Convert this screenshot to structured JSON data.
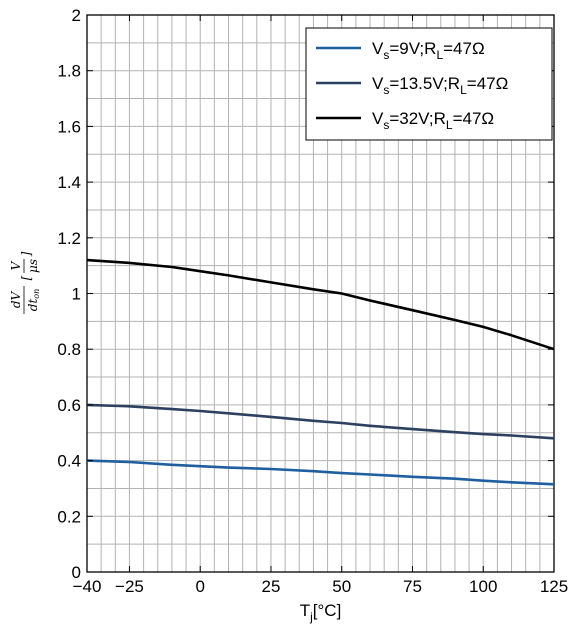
{
  "chart_data": {
    "type": "line",
    "xlabel": {
      "main": "T",
      "sub": "j",
      "rest": "[°C]"
    },
    "ylabel": {
      "num": "dV",
      "den": "dt",
      "den_sub": "on",
      "unit_pre": "[",
      "unit_num": "V",
      "unit_den": "μs",
      "unit_post": "]"
    },
    "xlim": [
      -40,
      125
    ],
    "ylim": [
      0,
      2
    ],
    "xticks": [
      -40,
      -25,
      0,
      25,
      50,
      75,
      100,
      125
    ],
    "xtick_labels": [
      "−40",
      "−25",
      "0",
      "25",
      "50",
      "75",
      "100",
      "125"
    ],
    "yticks": [
      0,
      0.2,
      0.4,
      0.6,
      0.8,
      1,
      1.2,
      1.4,
      1.6,
      1.8,
      2
    ],
    "ytick_labels": [
      "0",
      "0.2",
      "0.4",
      "0.6",
      "0.8",
      "1",
      "1.2",
      "1.4",
      "1.6",
      "1.8",
      "2"
    ],
    "grid": true,
    "legend_position": "top-right",
    "series": [
      {
        "name": "V_s=9V;R_L=47Ω",
        "label_parts": [
          "V",
          "s",
          "=9V;R",
          "L",
          "=47Ω"
        ],
        "color": "#1f5fa0",
        "x": [
          -40,
          -25,
          -10,
          0,
          10,
          25,
          40,
          50,
          60,
          75,
          90,
          100,
          110,
          125
        ],
        "y": [
          0.4,
          0.395,
          0.385,
          0.38,
          0.375,
          0.37,
          0.362,
          0.355,
          0.35,
          0.342,
          0.335,
          0.328,
          0.322,
          0.315
        ]
      },
      {
        "name": "V_s=13.5V;R_L=47Ω",
        "label_parts": [
          "V",
          "s",
          "=13.5V;R",
          "L",
          "=47Ω"
        ],
        "color": "#2c4060",
        "x": [
          -40,
          -25,
          -10,
          0,
          10,
          25,
          40,
          50,
          60,
          75,
          90,
          100,
          110,
          125
        ],
        "y": [
          0.6,
          0.595,
          0.585,
          0.578,
          0.57,
          0.557,
          0.543,
          0.535,
          0.525,
          0.513,
          0.502,
          0.495,
          0.49,
          0.48
        ]
      },
      {
        "name": "V_s=32V;R_L=47Ω",
        "label_parts": [
          "V",
          "s",
          "=32V;R",
          "L",
          "=47Ω"
        ],
        "color": "#000000",
        "x": [
          -40,
          -25,
          -10,
          0,
          10,
          25,
          40,
          50,
          60,
          75,
          90,
          100,
          110,
          125
        ],
        "y": [
          1.12,
          1.11,
          1.095,
          1.08,
          1.065,
          1.04,
          1.015,
          1.0,
          0.975,
          0.94,
          0.905,
          0.88,
          0.85,
          0.8
        ]
      }
    ]
  }
}
